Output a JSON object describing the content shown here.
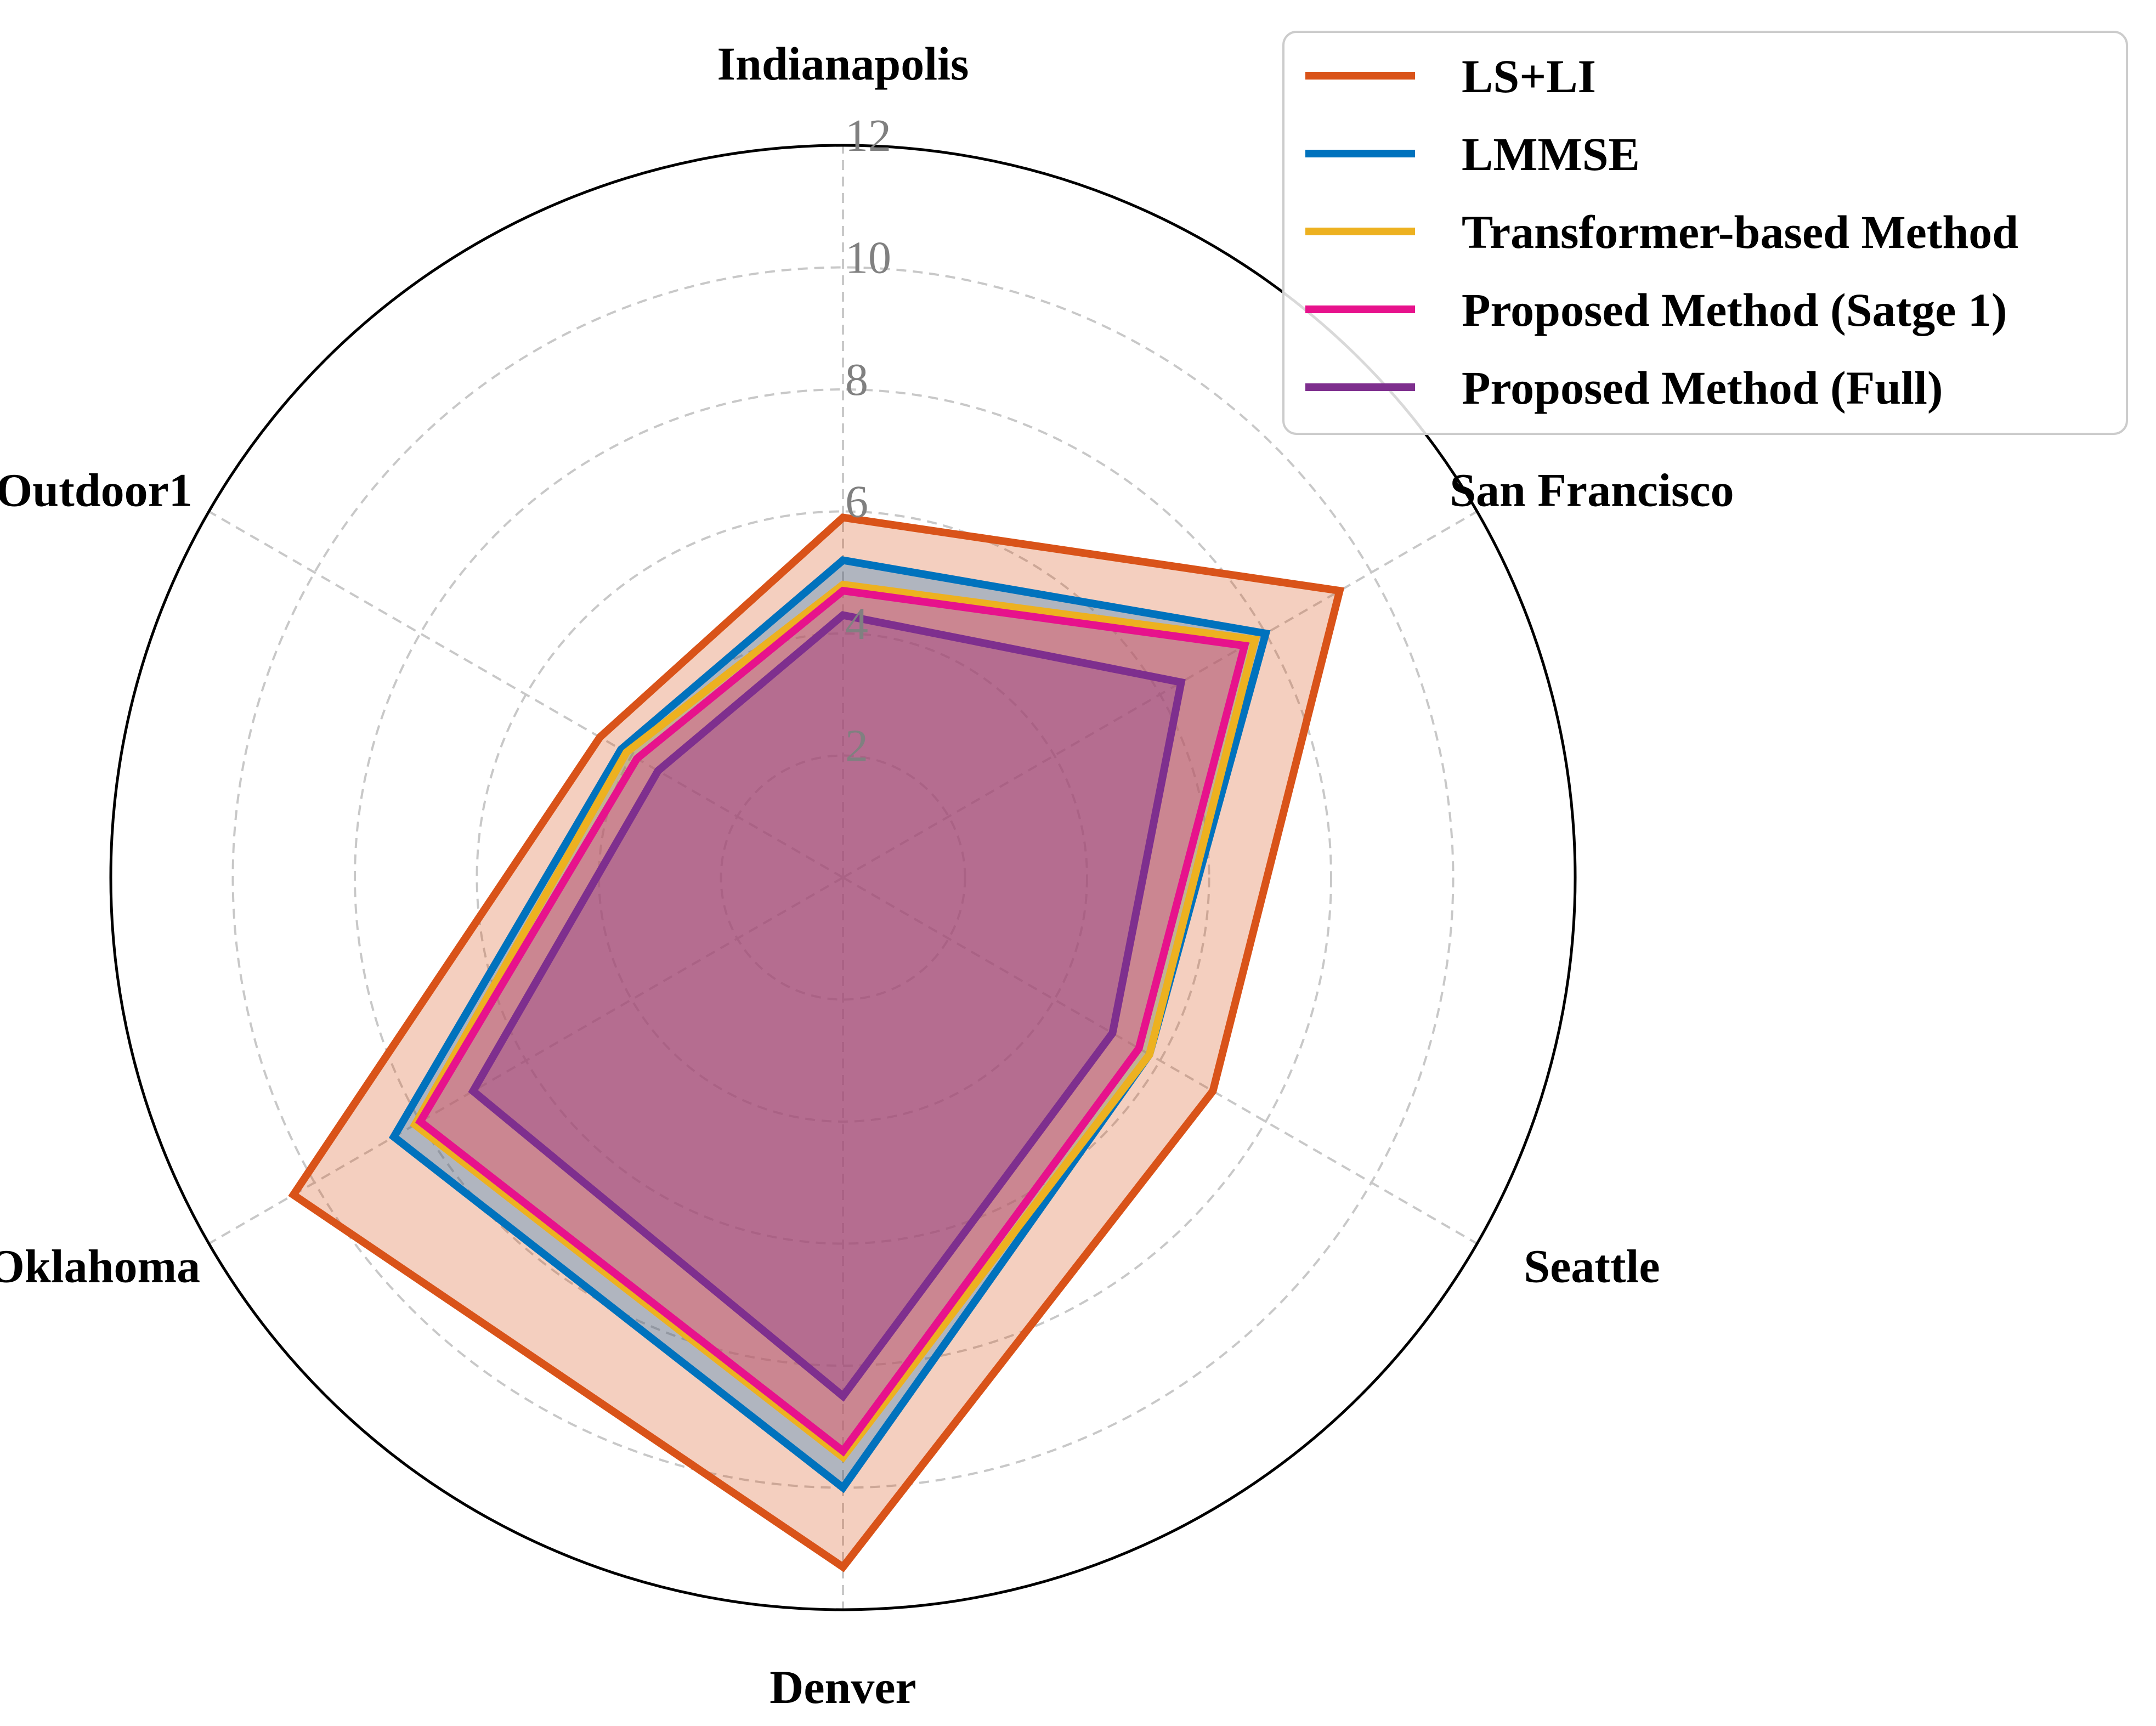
{
  "chart_data": {
    "type": "radar",
    "axes": [
      "Indianapolis",
      "San Francisco",
      "Seattle",
      "Denver",
      "Oklahoma",
      "Outdoor1"
    ],
    "rlim": [
      0,
      12
    ],
    "rticks": [
      2,
      4,
      6,
      8,
      10,
      12
    ],
    "rtick_labels": [
      "2",
      "4",
      "6",
      "8",
      "10",
      "12"
    ],
    "grid": true,
    "legend_position": "top-right",
    "series": [
      {
        "name": "LS+LI",
        "color": "#D95319",
        "values": [
          5.9,
          9.4,
          7.0,
          11.3,
          10.4,
          4.6
        ],
        "fill": true
      },
      {
        "name": "LMMSE",
        "color": "#0072BD",
        "values": [
          5.2,
          8.0,
          5.8,
          10.0,
          8.5,
          4.2
        ],
        "fill": true
      },
      {
        "name": "Transformer-based Method",
        "color": "#EDB120",
        "values": [
          4.8,
          7.8,
          5.8,
          9.5,
          8.1,
          4.1
        ],
        "fill": true
      },
      {
        "name": "Proposed Method (Satge 1)",
        "color": "#E7128C",
        "values": [
          4.7,
          7.6,
          5.6,
          9.4,
          8.0,
          3.9
        ],
        "fill": true
      },
      {
        "name": "Proposed Method (Full)",
        "color": "#7E2F8E",
        "values": [
          4.3,
          6.4,
          5.1,
          8.5,
          7.0,
          3.5
        ],
        "fill": true
      }
    ]
  }
}
